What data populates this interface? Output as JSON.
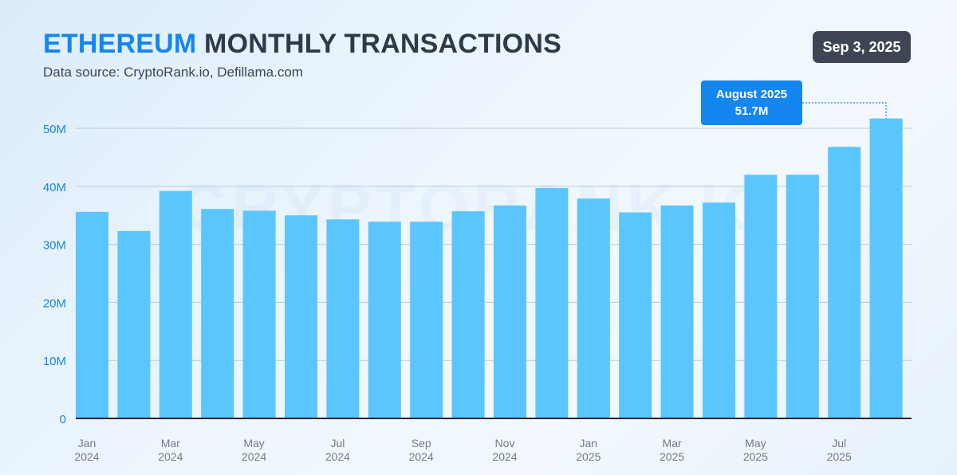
{
  "header": {
    "title_accent": "ETHEREUM",
    "title_rest": "MONTHLY TRANSACTIONS",
    "subtitle": "Data source: CryptoRank.io, Defillama.com",
    "date": "Sep 3, 2025",
    "watermark": "CRYPTORANK.IO"
  },
  "callout": {
    "month": "August 2025",
    "value": "51.7M"
  },
  "colors": {
    "bar": "#5ac6fd",
    "accent": "#1386f0",
    "axis_label": "#1a86d6",
    "grid": "#b8cbdb",
    "baseline": "#1f2530",
    "x_label": "#717a86"
  },
  "chart_data": {
    "type": "bar",
    "categories": [
      "Jan 2024",
      "Feb 2024",
      "Mar 2024",
      "Apr 2024",
      "May 2024",
      "Jun 2024",
      "Jul 2024",
      "Aug 2024",
      "Sep 2024",
      "Oct 2024",
      "Nov 2024",
      "Dec 2024",
      "Jan 2025",
      "Feb 2025",
      "Mar 2025",
      "Apr 2025",
      "May 2025",
      "Jun 2025",
      "Jul 2025",
      "Aug 2025"
    ],
    "values": [
      35.6,
      32.3,
      39.2,
      36.1,
      35.8,
      35.0,
      34.3,
      33.9,
      33.9,
      35.7,
      36.7,
      39.7,
      37.9,
      35.5,
      36.7,
      37.2,
      42.0,
      42.0,
      46.8,
      51.7
    ],
    "value_unit": "M",
    "ylim": [
      0,
      50
    ],
    "y_ticks": [
      {
        "value": 0,
        "label": "0"
      },
      {
        "value": 10,
        "label": "10M"
      },
      {
        "value": 20,
        "label": "20M"
      },
      {
        "value": 30,
        "label": "30M"
      },
      {
        "value": 40,
        "label": "40M"
      },
      {
        "value": 50,
        "label": "50M"
      }
    ],
    "x_tick_labels": [
      {
        "index": 0,
        "month": "Jan",
        "year": "2024"
      },
      {
        "index": 2,
        "month": "Mar",
        "year": "2024"
      },
      {
        "index": 4,
        "month": "May",
        "year": "2024"
      },
      {
        "index": 6,
        "month": "Jul",
        "year": "2024"
      },
      {
        "index": 8,
        "month": "Sep",
        "year": "2024"
      },
      {
        "index": 10,
        "month": "Nov",
        "year": "2024"
      },
      {
        "index": 12,
        "month": "Jan",
        "year": "2025"
      },
      {
        "index": 14,
        "month": "Mar",
        "year": "2025"
      },
      {
        "index": 16,
        "month": "May",
        "year": "2025"
      },
      {
        "index": 18,
        "month": "Jul",
        "year": "2025"
      }
    ],
    "highlight_index": 19,
    "grid": true,
    "title": "ETHEREUM MONTHLY TRANSACTIONS",
    "xlabel": "",
    "ylabel": ""
  }
}
